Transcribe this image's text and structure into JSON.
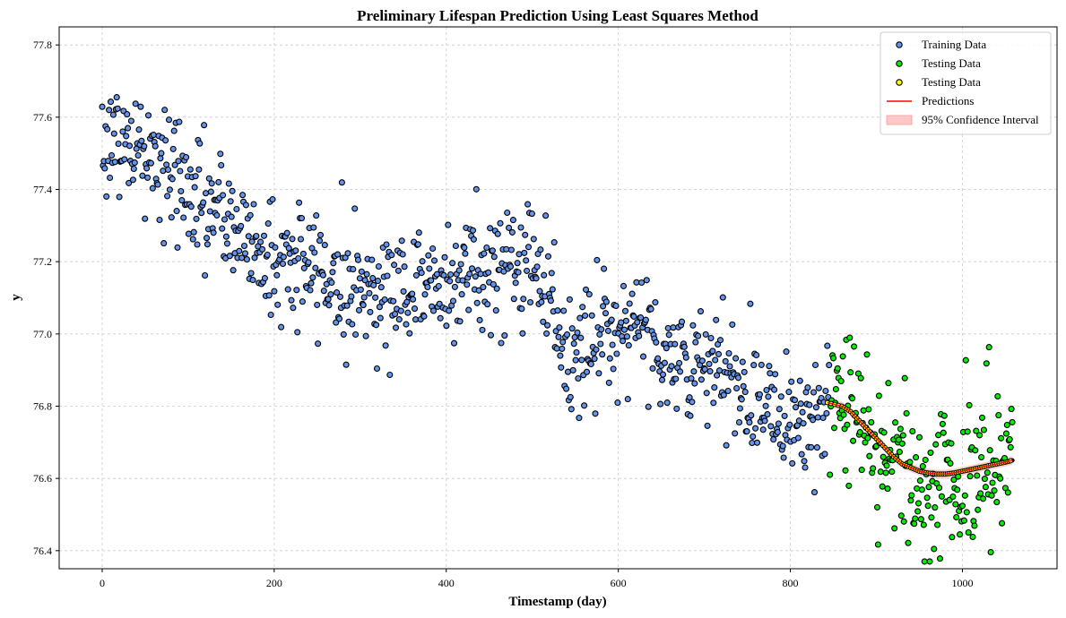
{
  "chart_data": {
    "type": "scatter",
    "title": "Preliminary Lifespan Prediction Using Least Squares Method",
    "xlabel": "Timestamp (day)",
    "ylabel": "y",
    "xlim": [
      -50,
      1110
    ],
    "ylim": [
      76.35,
      77.85
    ],
    "xticks": [
      0,
      200,
      400,
      600,
      800,
      1000
    ],
    "yticks": [
      76.4,
      76.6,
      76.8,
      77.0,
      77.2,
      77.4,
      77.6,
      77.8
    ],
    "grid": true,
    "legend_position": "top-right",
    "legend": [
      {
        "label": "Training Data",
        "kind": "marker",
        "color": "#6495ed"
      },
      {
        "label": "Testing Data",
        "kind": "marker",
        "color": "#00ee00"
      },
      {
        "label": "Testing Data",
        "kind": "marker",
        "color": "#ffff00"
      },
      {
        "label": "Predictions",
        "kind": "line",
        "color": "#ff0000"
      },
      {
        "label": "95% Confidence Interval",
        "kind": "band",
        "color": "#ffc8c8"
      }
    ],
    "training_trend": {
      "x": [
        0,
        50,
        100,
        150,
        200,
        250,
        300,
        350,
        400,
        450,
        500,
        525,
        540,
        580,
        620,
        660,
        700,
        750,
        800,
        845
      ],
      "y": [
        77.55,
        77.5,
        77.4,
        77.3,
        77.2,
        77.18,
        77.12,
        77.13,
        77.15,
        77.18,
        77.2,
        77.12,
        76.9,
        77.0,
        77.05,
        76.93,
        76.9,
        76.85,
        76.78,
        76.78
      ]
    },
    "testing_trend": {
      "x": [
        845,
        870,
        900,
        925,
        950,
        975,
        1000,
        1030,
        1058
      ],
      "y": [
        76.8,
        76.78,
        76.72,
        76.65,
        76.6,
        76.58,
        76.6,
        76.63,
        76.65
      ]
    },
    "series": [
      {
        "name": "Training Data",
        "color": "#6495ed",
        "n": 850,
        "noise": 0.085,
        "x_start": 0,
        "x_end": 845
      },
      {
        "name": "Testing Data",
        "color": "#00ee00",
        "n": 213,
        "noise": 0.11,
        "x_start": 846,
        "x_end": 1058
      },
      {
        "name": "Testing Data",
        "color": "#ffff00",
        "n": 0
      },
      {
        "name": "Predictions",
        "color": "#ff0000",
        "x": [
          843,
          860,
          870,
          880,
          890,
          900,
          910,
          920,
          930,
          940,
          950,
          960,
          970,
          980,
          990,
          1000,
          1010,
          1020,
          1030,
          1040,
          1050,
          1058
        ],
        "y": [
          76.81,
          76.8,
          76.785,
          76.76,
          76.735,
          76.71,
          76.685,
          76.66,
          76.64,
          76.63,
          76.62,
          76.615,
          76.612,
          76.612,
          76.615,
          76.62,
          76.625,
          76.63,
          76.635,
          76.64,
          76.645,
          76.65
        ]
      }
    ]
  }
}
